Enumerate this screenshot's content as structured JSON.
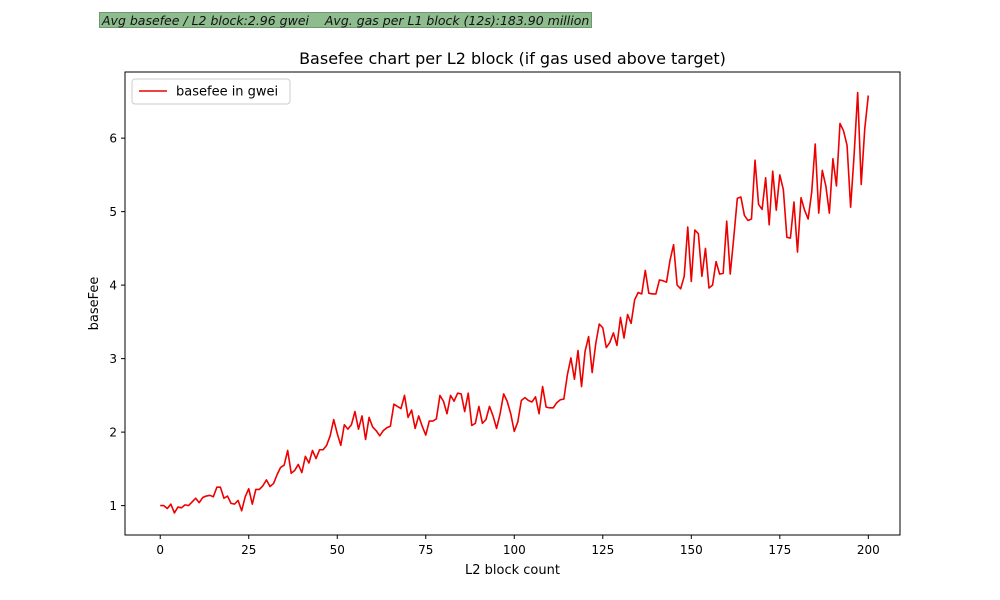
{
  "stats": {
    "text": "Avg basefee / L2 block:2.96 gwei    Avg. gas per L1 block (12s):183.90 million"
  },
  "colors": {
    "line": "#ee0000",
    "stats_bg": "#8fbc8f"
  },
  "chart_data": {
    "type": "line",
    "title": "Basefee chart per L2 block (if gas used above target)",
    "xlabel": "L2 block count",
    "ylabel": "baseFee",
    "xlim": [
      -9.95,
      208.95
    ],
    "ylim": [
      0.6,
      6.9
    ],
    "xticks": [
      0,
      25,
      50,
      75,
      100,
      125,
      150,
      175,
      200
    ],
    "yticks": [
      1,
      2,
      3,
      4,
      5,
      6
    ],
    "grid": false,
    "legend_position": "top-left",
    "series": [
      {
        "name": "basefee in gwei",
        "color": "#ee0000",
        "values": [
          1.0,
          1.0,
          0.96,
          1.02,
          0.9,
          0.98,
          0.97,
          1.01,
          1.0,
          1.05,
          1.1,
          1.04,
          1.11,
          1.13,
          1.14,
          1.12,
          1.25,
          1.25,
          1.1,
          1.13,
          1.03,
          1.02,
          1.07,
          0.93,
          1.12,
          1.23,
          1.02,
          1.22,
          1.22,
          1.27,
          1.35,
          1.26,
          1.3,
          1.42,
          1.52,
          1.55,
          1.75,
          1.44,
          1.48,
          1.56,
          1.45,
          1.67,
          1.58,
          1.75,
          1.64,
          1.76,
          1.76,
          1.82,
          1.95,
          2.17,
          1.98,
          1.82,
          2.1,
          2.04,
          2.1,
          2.28,
          2.04,
          2.22,
          1.9,
          2.2,
          2.07,
          2.02,
          1.95,
          2.02,
          2.06,
          2.08,
          2.38,
          2.35,
          2.32,
          2.5,
          2.2,
          2.3,
          2.05,
          2.22,
          2.08,
          1.96,
          2.15,
          2.15,
          2.18,
          2.5,
          2.42,
          2.25,
          2.5,
          2.42,
          2.53,
          2.52,
          2.28,
          2.53,
          2.09,
          2.12,
          2.35,
          2.12,
          2.17,
          2.35,
          2.22,
          2.05,
          2.25,
          2.52,
          2.42,
          2.25,
          2.01,
          2.14,
          2.43,
          2.47,
          2.43,
          2.41,
          2.48,
          2.25,
          2.62,
          2.34,
          2.33,
          2.33,
          2.4,
          2.44,
          2.45,
          2.78,
          3.01,
          2.72,
          3.11,
          2.62,
          3.1,
          3.3,
          2.81,
          3.2,
          3.47,
          3.42,
          3.15,
          3.22,
          3.35,
          3.18,
          3.56,
          3.28,
          3.6,
          3.48,
          3.8,
          3.9,
          3.88,
          4.2,
          3.89,
          3.88,
          3.88,
          4.07,
          4.06,
          4.04,
          4.34,
          4.55,
          4.0,
          3.95,
          4.12,
          4.79,
          4.05,
          4.75,
          4.7,
          4.12,
          4.5,
          3.96,
          4.0,
          4.32,
          4.15,
          4.16,
          4.87,
          4.15,
          4.65,
          5.18,
          5.2,
          4.95,
          4.88,
          4.9,
          5.7,
          5.1,
          5.03,
          5.46,
          4.82,
          5.55,
          5.02,
          5.5,
          5.3,
          4.65,
          4.64,
          5.13,
          4.45,
          5.19,
          5.02,
          4.9,
          5.26,
          5.92,
          4.98,
          5.56,
          5.35,
          4.98,
          5.72,
          5.35,
          6.2,
          6.1,
          5.9,
          5.06,
          5.78,
          6.62,
          5.37,
          6.13,
          6.58
        ]
      }
    ]
  }
}
